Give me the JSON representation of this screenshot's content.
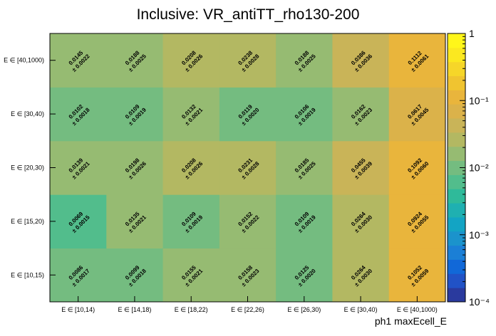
{
  "chart_data": {
    "type": "heatmap",
    "title": "Inclusive: VR_antiTT_rho130-200",
    "xlabel": "ph1 maxEcell_E",
    "ylabel": "",
    "x_categories": [
      "E ∈ [10,14)",
      "E ∈ [14,18)",
      "E ∈ [18,22)",
      "E ∈ [22,26)",
      "E ∈ [26,30)",
      "E ∈ [30,40)",
      "E ∈ [40,1000)"
    ],
    "y_categories": [
      "E ∈ [10,15)",
      "E ∈ [15,20)",
      "E ∈ [20,30)",
      "E ∈ [30,40)",
      "E ∈ [40,1000)"
    ],
    "values": [
      [
        0.0086,
        0.0099,
        0.0155,
        0.0158,
        0.0125,
        0.0264,
        0.1052
      ],
      [
        0.0069,
        0.0135,
        0.0109,
        0.0152,
        0.0109,
        0.0264,
        0.0924
      ],
      [
        0.0139,
        0.0198,
        0.0208,
        0.0231,
        0.0185,
        0.0455,
        0.1092
      ],
      [
        0.0102,
        0.0109,
        0.0132,
        0.0119,
        0.0106,
        0.0162,
        0.0617
      ],
      [
        0.0145,
        0.0188,
        0.0208,
        0.0238,
        0.0188,
        0.0386,
        0.1112
      ]
    ],
    "value_labels": [
      [
        "0.0086",
        "0.0099",
        "0.0155",
        "0.0158",
        "0.0125",
        "0.0264",
        "0.1052"
      ],
      [
        "0.0069",
        "0.0135",
        "0.0109",
        "0.0152",
        "0.0109",
        "0.0264",
        "0.0924"
      ],
      [
        "0.0139",
        "0.0198",
        "0.0208",
        "0.0231",
        "0.0185",
        "0.0455",
        "0.1092"
      ],
      [
        "0.0102",
        "0.0109",
        "0.0132",
        "0.0119",
        "0.0106",
        "0.0162",
        "0.0617"
      ],
      [
        "0.0145",
        "0.0188",
        "0.0208",
        "0.0238",
        "0.0188",
        "0.0386",
        "0.1112"
      ]
    ],
    "error_labels": [
      [
        "± 0.0017",
        "± 0.0018",
        "± 0.0021",
        "± 0.0023",
        "± 0.0020",
        "± 0.0030",
        "± 0.0059"
      ],
      [
        "± 0.0015",
        "± 0.0021",
        "± 0.0019",
        "± 0.0022",
        "± 0.0019",
        "± 0.0030",
        "± 0.0055"
      ],
      [
        "± 0.0021",
        "± 0.0026",
        "± 0.0026",
        "± 0.0028",
        "± 0.0025",
        "± 0.0039",
        "± 0.0060"
      ],
      [
        "± 0.0018",
        "± 0.0019",
        "± 0.0021",
        "± 0.0020",
        "± 0.0019",
        "± 0.0023",
        "± 0.0045"
      ],
      [
        "± 0.0022",
        "± 0.0025",
        "± 0.0026",
        "± 0.0028",
        "± 0.0025",
        "± 0.0036",
        "± 0.0061"
      ]
    ],
    "zscale": "log",
    "zlim": [
      0.0001,
      1
    ],
    "colorbar_labels": [
      {
        "value": 1,
        "text": "1"
      },
      {
        "value": 0.1,
        "text": "10⁻¹"
      },
      {
        "value": 0.01,
        "text": "10⁻²"
      },
      {
        "value": 0.001,
        "text": "10⁻³"
      },
      {
        "value": 0.0001,
        "text": "10⁻⁴"
      }
    ],
    "palette": [
      "#2a3a9e",
      "#2152c6",
      "#1168d8",
      "#1b7fd6",
      "#1b93cc",
      "#13a4c4",
      "#1fb0b1",
      "#2fba9a",
      "#52bd8c",
      "#74bc80",
      "#96bb72",
      "#b3b862",
      "#c9b458",
      "#dbb24a",
      "#e9b53c",
      "#f0c430",
      "#f6d629",
      "#fbe820",
      "#fff61a"
    ]
  }
}
